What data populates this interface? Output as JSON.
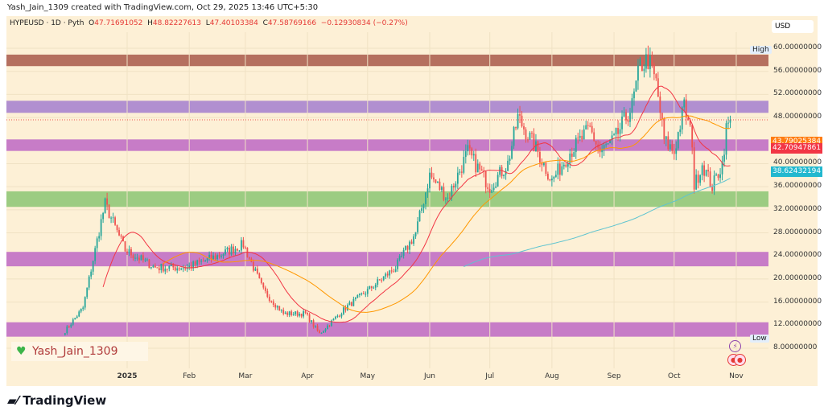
{
  "credit": "Yash_Jain_1309 created with TradingView.com, Oct 29, 2025 13:46 UTC+5:30",
  "legend": {
    "symbol": "HYPEUSD · 1D · Pyth",
    "o_label": "O",
    "o": "47.71691052",
    "h_label": "H",
    "h": "48.82227613",
    "l_label": "L",
    "l": "47.40103384",
    "c_label": "C",
    "c": "47.58769166",
    "change": "−0.12930834 (−0.27%)"
  },
  "currency": "USD",
  "high_label": "High",
  "low_label": "Low",
  "watermark": "Yash_Jain_1309",
  "logo": "TradingView",
  "colors": {
    "background": "#fdf0d6",
    "up": "#26a69a",
    "down": "#ef5350",
    "ma_fast": "#f23645",
    "ma_mid": "#ff9800",
    "ma_slow": "#5fc4d0"
  },
  "price_labels": [
    {
      "value": "43.79025384",
      "color": "#ff7d12"
    },
    {
      "value": "42.70947861",
      "color": "#f23645"
    },
    {
      "value": "38.62432194",
      "color": "#22b8cf"
    }
  ],
  "chart_data": {
    "type": "candlestick",
    "symbol": "HYPEUSD",
    "interval": "1D",
    "y_ticks": [
      "60.00000000",
      "56.00000000",
      "52.00000000",
      "48.00000000",
      "40.00000000",
      "36.00000000",
      "32.00000000",
      "28.00000000",
      "24.00000000",
      "20.00000000",
      "16.00000000",
      "12.00000000",
      "8.00000000"
    ],
    "ylim": [
      8,
      60
    ],
    "x_ticks": [
      "2025",
      "Feb",
      "Mar",
      "Apr",
      "May",
      "Jun",
      "Jul",
      "Aug",
      "Sep",
      "Oct",
      "Nov"
    ],
    "zones": [
      {
        "from": 56.9,
        "to": 58.9,
        "color": "#b5705f"
      },
      {
        "from": 48.8,
        "to": 50.9,
        "color": "#b18fd0"
      },
      {
        "from": 42.2,
        "to": 44.2,
        "color": "#c77cc7"
      },
      {
        "from": 32.5,
        "to": 35.2,
        "color": "#9ccc82"
      },
      {
        "from": 22.2,
        "to": 24.7,
        "color": "#c77cc7"
      },
      {
        "from": 10.0,
        "to": 12.5,
        "color": "#c77cc7"
      }
    ],
    "last_close": 47.58769166,
    "close_anchors": [
      [
        "2024-12-01",
        11
      ],
      [
        "2024-12-10",
        15
      ],
      [
        "2024-12-19",
        30
      ],
      [
        "2024-12-21",
        33
      ],
      [
        "2024-12-31",
        25
      ],
      [
        "2025-01-15",
        22
      ],
      [
        "2025-01-31",
        22
      ],
      [
        "2025-02-15",
        24
      ],
      [
        "2025-02-28",
        26
      ],
      [
        "2025-03-10",
        18
      ],
      [
        "2025-03-20",
        14
      ],
      [
        "2025-03-31",
        14
      ],
      [
        "2025-04-07",
        10.5
      ],
      [
        "2025-04-20",
        15
      ],
      [
        "2025-05-01",
        18
      ],
      [
        "2025-05-15",
        22
      ],
      [
        "2025-05-25",
        28
      ],
      [
        "2025-06-01",
        38
      ],
      [
        "2025-06-10",
        34
      ],
      [
        "2025-06-20",
        42
      ],
      [
        "2025-07-01",
        36
      ],
      [
        "2025-07-10",
        40
      ],
      [
        "2025-07-15",
        48
      ],
      [
        "2025-07-25",
        42
      ],
      [
        "2025-08-01",
        37
      ],
      [
        "2025-08-10",
        42
      ],
      [
        "2025-08-20",
        46
      ],
      [
        "2025-08-25",
        42
      ],
      [
        "2025-09-01",
        44
      ],
      [
        "2025-09-10",
        50
      ],
      [
        "2025-09-14",
        57
      ],
      [
        "2025-09-18",
        58
      ],
      [
        "2025-09-22",
        54
      ],
      [
        "2025-09-26",
        44
      ],
      [
        "2025-10-01",
        42
      ],
      [
        "2025-10-06",
        50
      ],
      [
        "2025-10-10",
        44
      ],
      [
        "2025-10-11",
        36
      ],
      [
        "2025-10-15",
        40
      ],
      [
        "2025-10-20",
        36
      ],
      [
        "2025-10-25",
        40
      ],
      [
        "2025-10-27",
        46
      ],
      [
        "2025-10-29",
        47.59
      ]
    ]
  }
}
